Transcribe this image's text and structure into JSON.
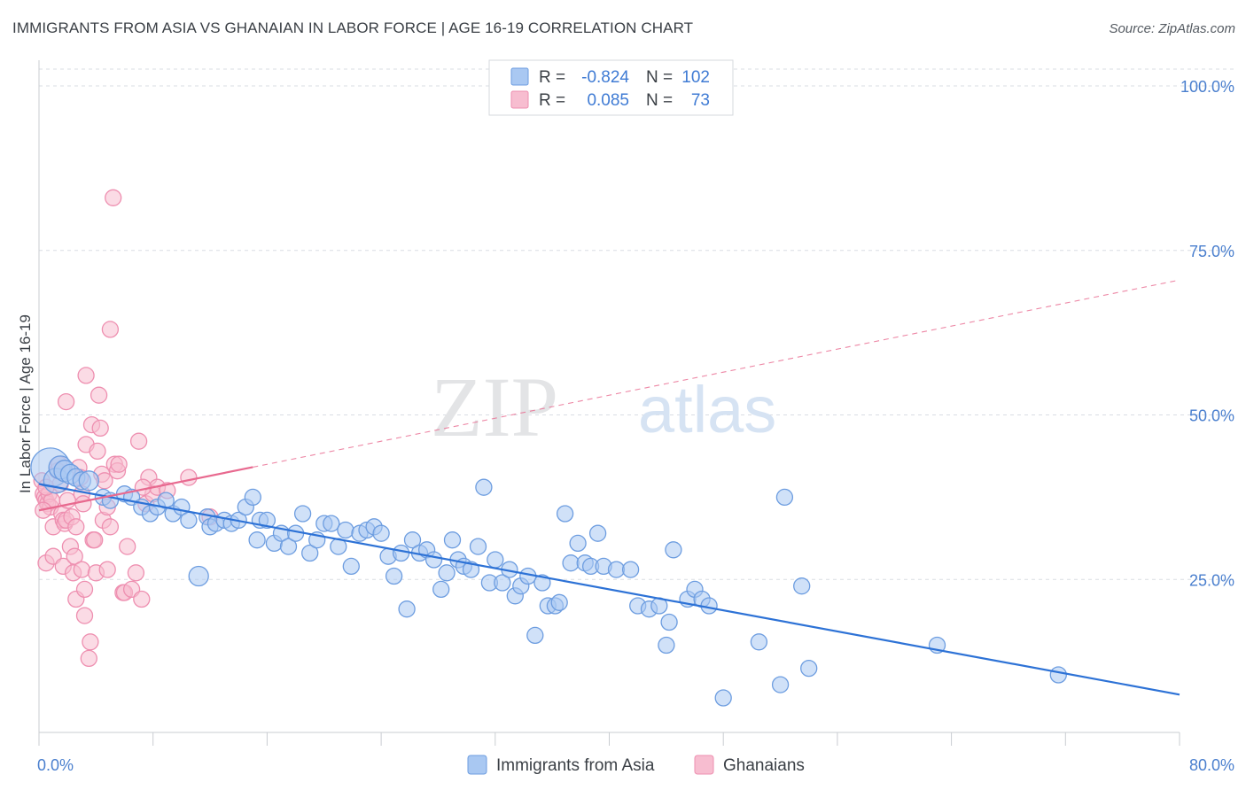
{
  "title": "IMMIGRANTS FROM ASIA VS GHANAIAN IN LABOR FORCE | AGE 16-19 CORRELATION CHART",
  "source": "Source: ZipAtlas.com",
  "watermark": {
    "zip": "ZIP",
    "atlas": "atlas"
  },
  "colors": {
    "blue_fill": "#a9c8f2",
    "blue_stroke": "#6d9de0",
    "blue_line": "#2d72d6",
    "pink_fill": "#f7bdd0",
    "pink_stroke": "#ee8fb0",
    "pink_line": "#e8698f",
    "tick_text": "#4a7fce",
    "grid": "#d9dde3"
  },
  "stats_box": {
    "rows": [
      {
        "r_label": "R =",
        "r_value": "-0.824",
        "n_label": "N =",
        "n_value": "102"
      },
      {
        "r_label": "R =",
        "r_value": "0.085",
        "n_label": "N =",
        "n_value": "73"
      }
    ]
  },
  "chart_data": {
    "type": "scatter",
    "title": "IMMIGRANTS FROM ASIA VS GHANAIAN IN LABOR FORCE | AGE 16-19 CORRELATION CHART",
    "xlabel": "",
    "ylabel": "In Labor Force | Age 16-19",
    "xlim": [
      0,
      80
    ],
    "ylim": [
      0,
      105
    ],
    "x_ticks": [
      {
        "value": 0,
        "label": "0.0%"
      },
      {
        "value": 80,
        "label": "80.0%"
      }
    ],
    "y_ticks": [
      {
        "value": 25,
        "label": "25.0%"
      },
      {
        "value": 50,
        "label": "50.0%"
      },
      {
        "value": 75,
        "label": "75.0%"
      },
      {
        "value": 100,
        "label": "100.0%"
      }
    ],
    "grid": true,
    "legend_position": "bottom-center",
    "series": [
      {
        "name": "Immigrants from Asia",
        "color": "blue",
        "r": -0.824,
        "n": 102,
        "trend": {
          "x0": 0,
          "y0": 39.5,
          "x1": 80,
          "y1": 7.5,
          "dashed_from_x": null
        },
        "points": [
          [
            0.8,
            42,
            22
          ],
          [
            1.2,
            40,
            14
          ],
          [
            1.5,
            42,
            13
          ],
          [
            1.8,
            41.5,
            12
          ],
          [
            2.2,
            41,
            11
          ],
          [
            2.6,
            40.5,
            10
          ],
          [
            3.0,
            40,
            10
          ],
          [
            3.5,
            40,
            11
          ],
          [
            4.5,
            37.5,
            9
          ],
          [
            5.0,
            37,
            9
          ],
          [
            6.0,
            38,
            9
          ],
          [
            6.5,
            37.5,
            9
          ],
          [
            7.2,
            36,
            9
          ],
          [
            7.8,
            35,
            9
          ],
          [
            8.3,
            36,
            9
          ],
          [
            8.9,
            37,
            9
          ],
          [
            9.4,
            35,
            9
          ],
          [
            10.0,
            36,
            9
          ],
          [
            10.5,
            34,
            9
          ],
          [
            11.2,
            25.5,
            11
          ],
          [
            11.8,
            34.5,
            9
          ],
          [
            12.0,
            33,
            9
          ],
          [
            12.4,
            33.5,
            9
          ],
          [
            13.0,
            34,
            9
          ],
          [
            13.5,
            33.5,
            9
          ],
          [
            14.0,
            34,
            9
          ],
          [
            14.5,
            36,
            9
          ],
          [
            15.0,
            37.5,
            9
          ],
          [
            15.3,
            31,
            9
          ],
          [
            15.5,
            34,
            9
          ],
          [
            16.0,
            34,
            9
          ],
          [
            16.5,
            30.5,
            9
          ],
          [
            17.0,
            32,
            9
          ],
          [
            17.5,
            30,
            9
          ],
          [
            18.0,
            32,
            9
          ],
          [
            18.5,
            35,
            9
          ],
          [
            19.0,
            29,
            9
          ],
          [
            19.5,
            31,
            9
          ],
          [
            20.0,
            33.5,
            9
          ],
          [
            20.5,
            33.5,
            9
          ],
          [
            21.0,
            30,
            9
          ],
          [
            21.5,
            32.5,
            9
          ],
          [
            21.9,
            27,
            9
          ],
          [
            22.5,
            32,
            9
          ],
          [
            23.0,
            32.5,
            9
          ],
          [
            23.5,
            33,
            9
          ],
          [
            24.0,
            32,
            9
          ],
          [
            24.5,
            28.5,
            9
          ],
          [
            24.9,
            25.5,
            9
          ],
          [
            25.4,
            29,
            9
          ],
          [
            25.8,
            20.5,
            9
          ],
          [
            26.2,
            31,
            9
          ],
          [
            26.7,
            29,
            9
          ],
          [
            27.2,
            29.5,
            9
          ],
          [
            27.7,
            28,
            9
          ],
          [
            28.2,
            23.5,
            9
          ],
          [
            28.6,
            26,
            9
          ],
          [
            29.0,
            31,
            9
          ],
          [
            29.4,
            28,
            9
          ],
          [
            29.8,
            27,
            9
          ],
          [
            30.3,
            26.5,
            9
          ],
          [
            30.8,
            30,
            9
          ],
          [
            31.2,
            39,
            9
          ],
          [
            31.6,
            24.5,
            9
          ],
          [
            32.0,
            28,
            9
          ],
          [
            32.5,
            24.5,
            9
          ],
          [
            33.0,
            26.5,
            9
          ],
          [
            33.4,
            22.5,
            9
          ],
          [
            33.8,
            24,
            9
          ],
          [
            34.3,
            25.5,
            9
          ],
          [
            34.8,
            16.5,
            9
          ],
          [
            35.3,
            24.5,
            9
          ],
          [
            35.7,
            21,
            9
          ],
          [
            36.2,
            21,
            9
          ],
          [
            36.5,
            21.5,
            9
          ],
          [
            36.9,
            35,
            9
          ],
          [
            37.3,
            27.5,
            9
          ],
          [
            37.8,
            30.5,
            9
          ],
          [
            38.3,
            27.5,
            9
          ],
          [
            38.7,
            27,
            9
          ],
          [
            39.2,
            32,
            9
          ],
          [
            39.6,
            27,
            9
          ],
          [
            40.5,
            26.5,
            9
          ],
          [
            41.5,
            26.5,
            9
          ],
          [
            42.0,
            21,
            9
          ],
          [
            42.8,
            20.5,
            9
          ],
          [
            43.5,
            21,
            9
          ],
          [
            44.2,
            18.5,
            9
          ],
          [
            44.5,
            29.5,
            9
          ],
          [
            44.0,
            15,
            9
          ],
          [
            45.5,
            22,
            9
          ],
          [
            46.0,
            23.5,
            9
          ],
          [
            46.5,
            22,
            9
          ],
          [
            47.0,
            21,
            9
          ],
          [
            48.0,
            7,
            9
          ],
          [
            50.5,
            15.5,
            9
          ],
          [
            52.0,
            9,
            9
          ],
          [
            52.3,
            37.5,
            9
          ],
          [
            53.5,
            24,
            9
          ],
          [
            54.0,
            11.5,
            9
          ],
          [
            63.0,
            15,
            9
          ],
          [
            71.5,
            10.5,
            9
          ]
        ]
      },
      {
        "name": "Ghanaians",
        "color": "pink",
        "r": 0.085,
        "n": 73,
        "trend": {
          "x0": 0,
          "y0": 35.5,
          "x1": 80,
          "y1": 70.5,
          "solid_until_x": 15
        },
        "points": [
          [
            0.2,
            40,
            9
          ],
          [
            0.3,
            38,
            9
          ],
          [
            0.4,
            37.5,
            9
          ],
          [
            0.5,
            37,
            9
          ],
          [
            0.6,
            36.5,
            9
          ],
          [
            0.7,
            38,
            9
          ],
          [
            0.8,
            36,
            9
          ],
          [
            0.9,
            37,
            9
          ],
          [
            0.5,
            39,
            9
          ],
          [
            0.3,
            35.5,
            9
          ],
          [
            1.0,
            33,
            9
          ],
          [
            0.5,
            27.5,
            9
          ],
          [
            1.0,
            28.5,
            9
          ],
          [
            1.3,
            41.5,
            9
          ],
          [
            1.4,
            42.5,
            9
          ],
          [
            1.5,
            39.5,
            9
          ],
          [
            1.6,
            35,
            9
          ],
          [
            1.7,
            34,
            9
          ],
          [
            1.7,
            27,
            9
          ],
          [
            1.8,
            33.5,
            9
          ],
          [
            1.9,
            34,
            9
          ],
          [
            1.9,
            52,
            9
          ],
          [
            2.0,
            37,
            9
          ],
          [
            2.2,
            30,
            9
          ],
          [
            2.3,
            34.5,
            9
          ],
          [
            2.4,
            26,
            9
          ],
          [
            2.5,
            28.5,
            9
          ],
          [
            2.6,
            33,
            9
          ],
          [
            2.6,
            22,
            9
          ],
          [
            2.8,
            42,
            9
          ],
          [
            2.9,
            40.5,
            9
          ],
          [
            3.0,
            38,
            9
          ],
          [
            3.0,
            26.5,
            9
          ],
          [
            3.1,
            36.5,
            9
          ],
          [
            3.2,
            23.5,
            9
          ],
          [
            3.3,
            45.5,
            9
          ],
          [
            3.2,
            19.5,
            9
          ],
          [
            3.3,
            56,
            9
          ],
          [
            3.5,
            13,
            9
          ],
          [
            3.6,
            15.5,
            9
          ],
          [
            3.7,
            48.5,
            9
          ],
          [
            3.8,
            31,
            9
          ],
          [
            3.9,
            31,
            9
          ],
          [
            4.0,
            26,
            9
          ],
          [
            4.1,
            44.5,
            9
          ],
          [
            4.2,
            53,
            9
          ],
          [
            4.3,
            48,
            9
          ],
          [
            4.4,
            41,
            9
          ],
          [
            4.5,
            34,
            9
          ],
          [
            4.6,
            40,
            9
          ],
          [
            4.8,
            36,
            9
          ],
          [
            4.8,
            26.5,
            9
          ],
          [
            5.0,
            63,
            9
          ],
          [
            5.3,
            42.5,
            9
          ],
          [
            5.5,
            41.5,
            9
          ],
          [
            5.6,
            42.5,
            9
          ],
          [
            5.0,
            33,
            9
          ],
          [
            5.9,
            23,
            9
          ],
          [
            6.0,
            23,
            9
          ],
          [
            6.2,
            30,
            9
          ],
          [
            6.5,
            23.5,
            9
          ],
          [
            6.8,
            26,
            9
          ],
          [
            7.0,
            46,
            9
          ],
          [
            7.2,
            22,
            9
          ],
          [
            7.5,
            36.5,
            9
          ],
          [
            7.7,
            40.5,
            9
          ],
          [
            8.0,
            38,
            9
          ],
          [
            8.3,
            39,
            9
          ],
          [
            9.0,
            38.5,
            9
          ],
          [
            10.5,
            40.5,
            9
          ],
          [
            12.0,
            34.5,
            9
          ],
          [
            5.2,
            83,
            9
          ],
          [
            7.3,
            39,
            9
          ]
        ]
      }
    ]
  },
  "legend": {
    "items": [
      {
        "label": "Immigrants from Asia",
        "color": "blue"
      },
      {
        "label": "Ghanaians",
        "color": "pink"
      }
    ]
  }
}
